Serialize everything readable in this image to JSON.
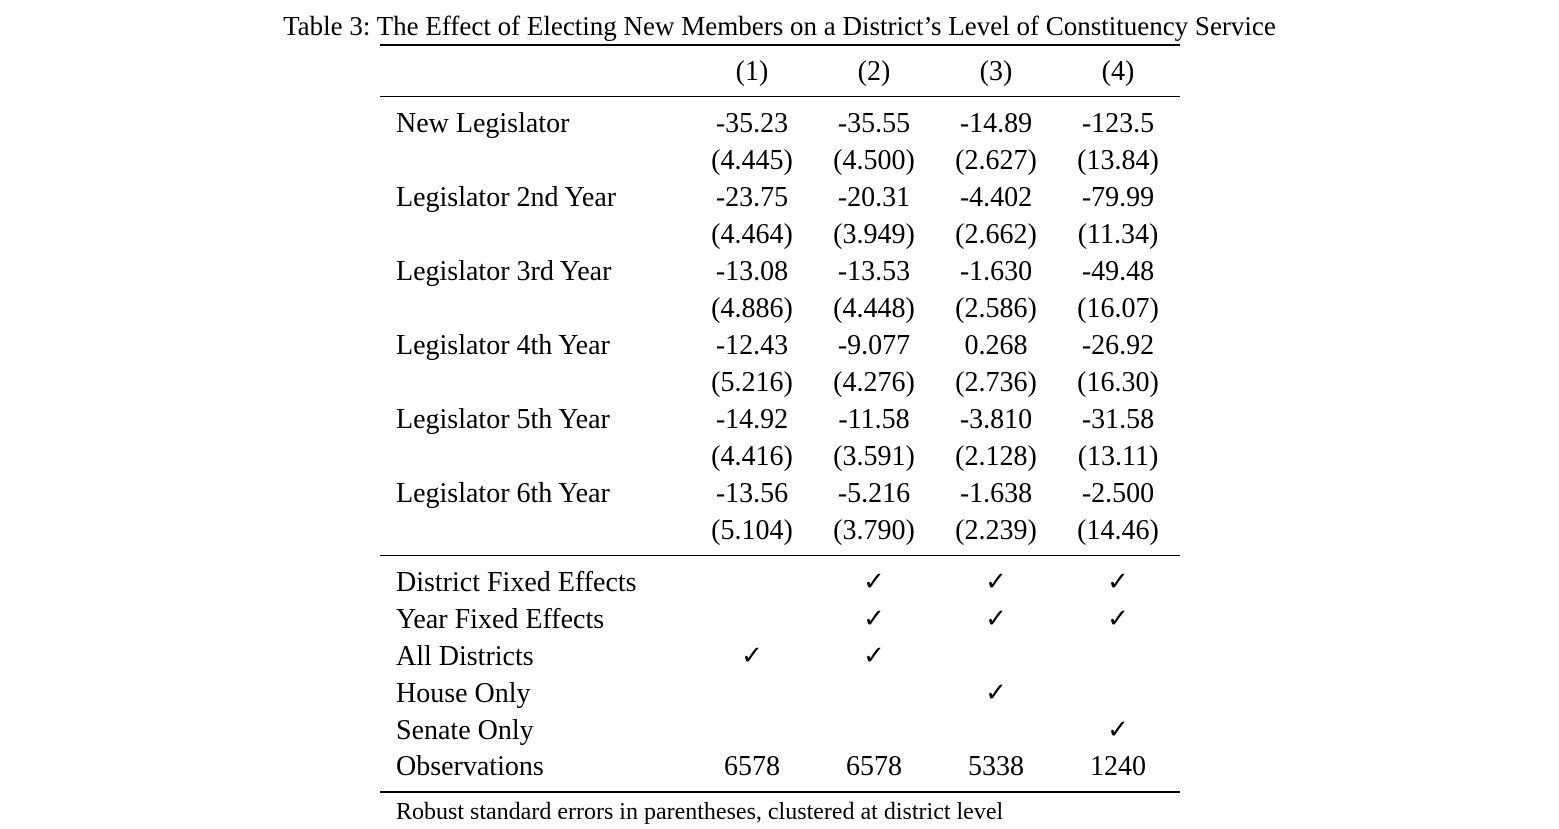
{
  "caption": "Table 3: The Effect of Electing New Members on a District’s Level of Constituency Service",
  "columns": [
    "(1)",
    "(2)",
    "(3)",
    "(4)"
  ],
  "coefficients": [
    {
      "label": "New Legislator",
      "est": [
        "-35.23",
        "-35.55",
        "-14.89",
        "-123.5"
      ],
      "se": [
        "(4.445)",
        "(4.500)",
        "(2.627)",
        "(13.84)"
      ]
    },
    {
      "label": "Legislator 2nd Year",
      "est": [
        "-23.75",
        "-20.31",
        "-4.402",
        "-79.99"
      ],
      "se": [
        "(4.464)",
        "(3.949)",
        "(2.662)",
        "(11.34)"
      ]
    },
    {
      "label": "Legislator 3rd Year",
      "est": [
        "-13.08",
        "-13.53",
        "-1.630",
        "-49.48"
      ],
      "se": [
        "(4.886)",
        "(4.448)",
        "(2.586)",
        "(16.07)"
      ]
    },
    {
      "label": "Legislator 4th Year",
      "est": [
        "-12.43",
        "-9.077",
        "0.268",
        "-26.92"
      ],
      "se": [
        "(5.216)",
        "(4.276)",
        "(2.736)",
        "(16.30)"
      ]
    },
    {
      "label": "Legislator 5th Year",
      "est": [
        "-14.92",
        "-11.58",
        "-3.810",
        "-31.58"
      ],
      "se": [
        "(4.416)",
        "(3.591)",
        "(2.128)",
        "(13.11)"
      ]
    },
    {
      "label": "Legislator 6th Year",
      "est": [
        "-13.56",
        "-5.216",
        "-1.638",
        "-2.500"
      ],
      "se": [
        "(5.104)",
        "(3.790)",
        "(2.239)",
        "(14.46)"
      ]
    }
  ],
  "specs": [
    {
      "label": "District Fixed Effects",
      "cells": [
        "",
        "✓",
        "✓",
        "✓"
      ]
    },
    {
      "label": "Year Fixed Effects",
      "cells": [
        "",
        "✓",
        "✓",
        "✓"
      ]
    },
    {
      "label": "All Districts",
      "cells": [
        "✓",
        "✓",
        "",
        ""
      ]
    },
    {
      "label": "House Only",
      "cells": [
        "",
        "",
        "✓",
        ""
      ]
    },
    {
      "label": "Senate Only",
      "cells": [
        "",
        "",
        "",
        "✓"
      ]
    }
  ],
  "observations": {
    "label": "Observations",
    "cells": [
      "6578",
      "6578",
      "5338",
      "1240"
    ]
  },
  "note": "Robust standard errors in parentheses, clustered at district level"
}
